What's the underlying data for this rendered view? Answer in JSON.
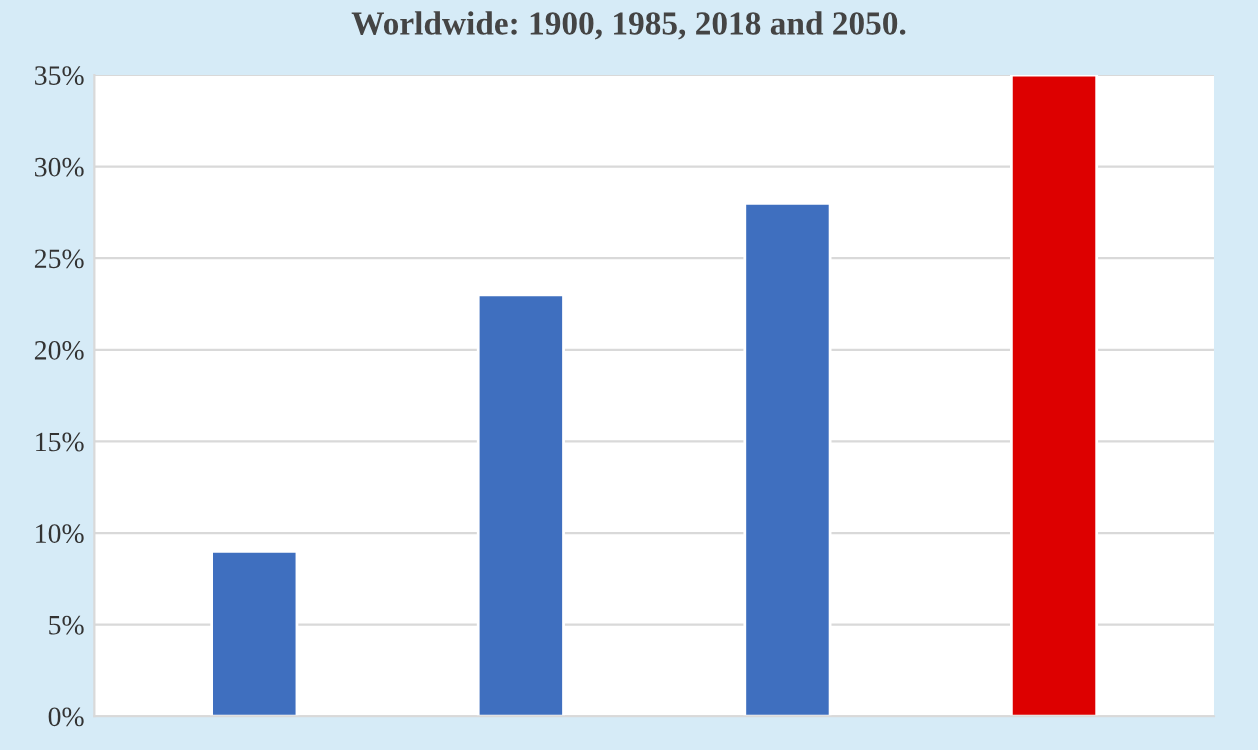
{
  "chart_data": {
    "type": "bar",
    "title": "Worldwide: 1900, 1985, 2018 and 2050.",
    "categories": [
      null,
      null,
      null,
      null
    ],
    "values": [
      9,
      23,
      28,
      35
    ],
    "colors": [
      "#3f6fbf",
      "#3f6fbf",
      "#3f6fbf",
      "#dd0000"
    ],
    "ylim": [
      0,
      35
    ],
    "yticks": [
      {
        "value": 0,
        "label": "0%"
      },
      {
        "value": 5,
        "label": "5%"
      },
      {
        "value": 10,
        "label": "10%"
      },
      {
        "value": 15,
        "label": "15%"
      },
      {
        "value": 20,
        "label": "20%"
      },
      {
        "value": 25,
        "label": "25%"
      },
      {
        "value": 30,
        "label": "30%"
      },
      {
        "value": 35,
        "label": "35%"
      }
    ],
    "grid": "y",
    "legend": false
  }
}
